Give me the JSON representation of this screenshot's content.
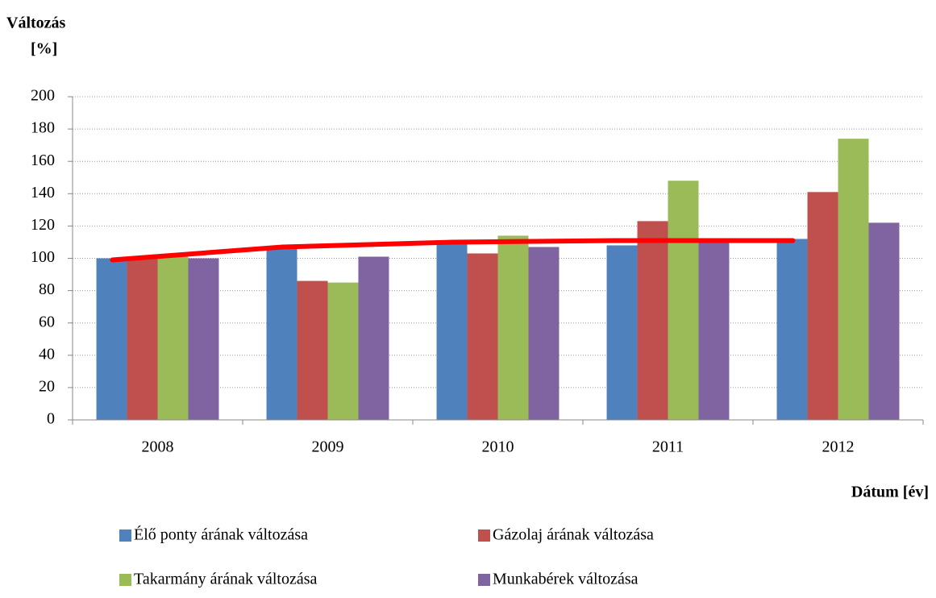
{
  "chart_data": {
    "type": "bar",
    "y_label_line1": "Változás",
    "y_label_line2": "[%]",
    "x_label": "Dátum [év]",
    "categories": [
      "2008",
      "2009",
      "2010",
      "2011",
      "2012"
    ],
    "series": [
      {
        "name": "Élő ponty árának változása",
        "color": "#4f81bd",
        "values": [
          100,
          106,
          110,
          108,
          112
        ]
      },
      {
        "name": "Gázolaj árának változása",
        "color": "#c0504d",
        "values": [
          101,
          86,
          103,
          123,
          141
        ]
      },
      {
        "name": "Takarmány árának változása",
        "color": "#9bbb59",
        "values": [
          101,
          85,
          114,
          148,
          174
        ]
      },
      {
        "name": "Munkabérek változása",
        "color": "#8064a2",
        "values": [
          100,
          101,
          107,
          112,
          122
        ]
      }
    ],
    "overlay_line": {
      "color": "#ff0000",
      "values": [
        99,
        107,
        110,
        111,
        111
      ]
    },
    "ylim": [
      0,
      200
    ],
    "yticks": [
      0,
      20,
      40,
      60,
      80,
      100,
      120,
      140,
      160,
      180,
      200
    ],
    "grid": true
  }
}
